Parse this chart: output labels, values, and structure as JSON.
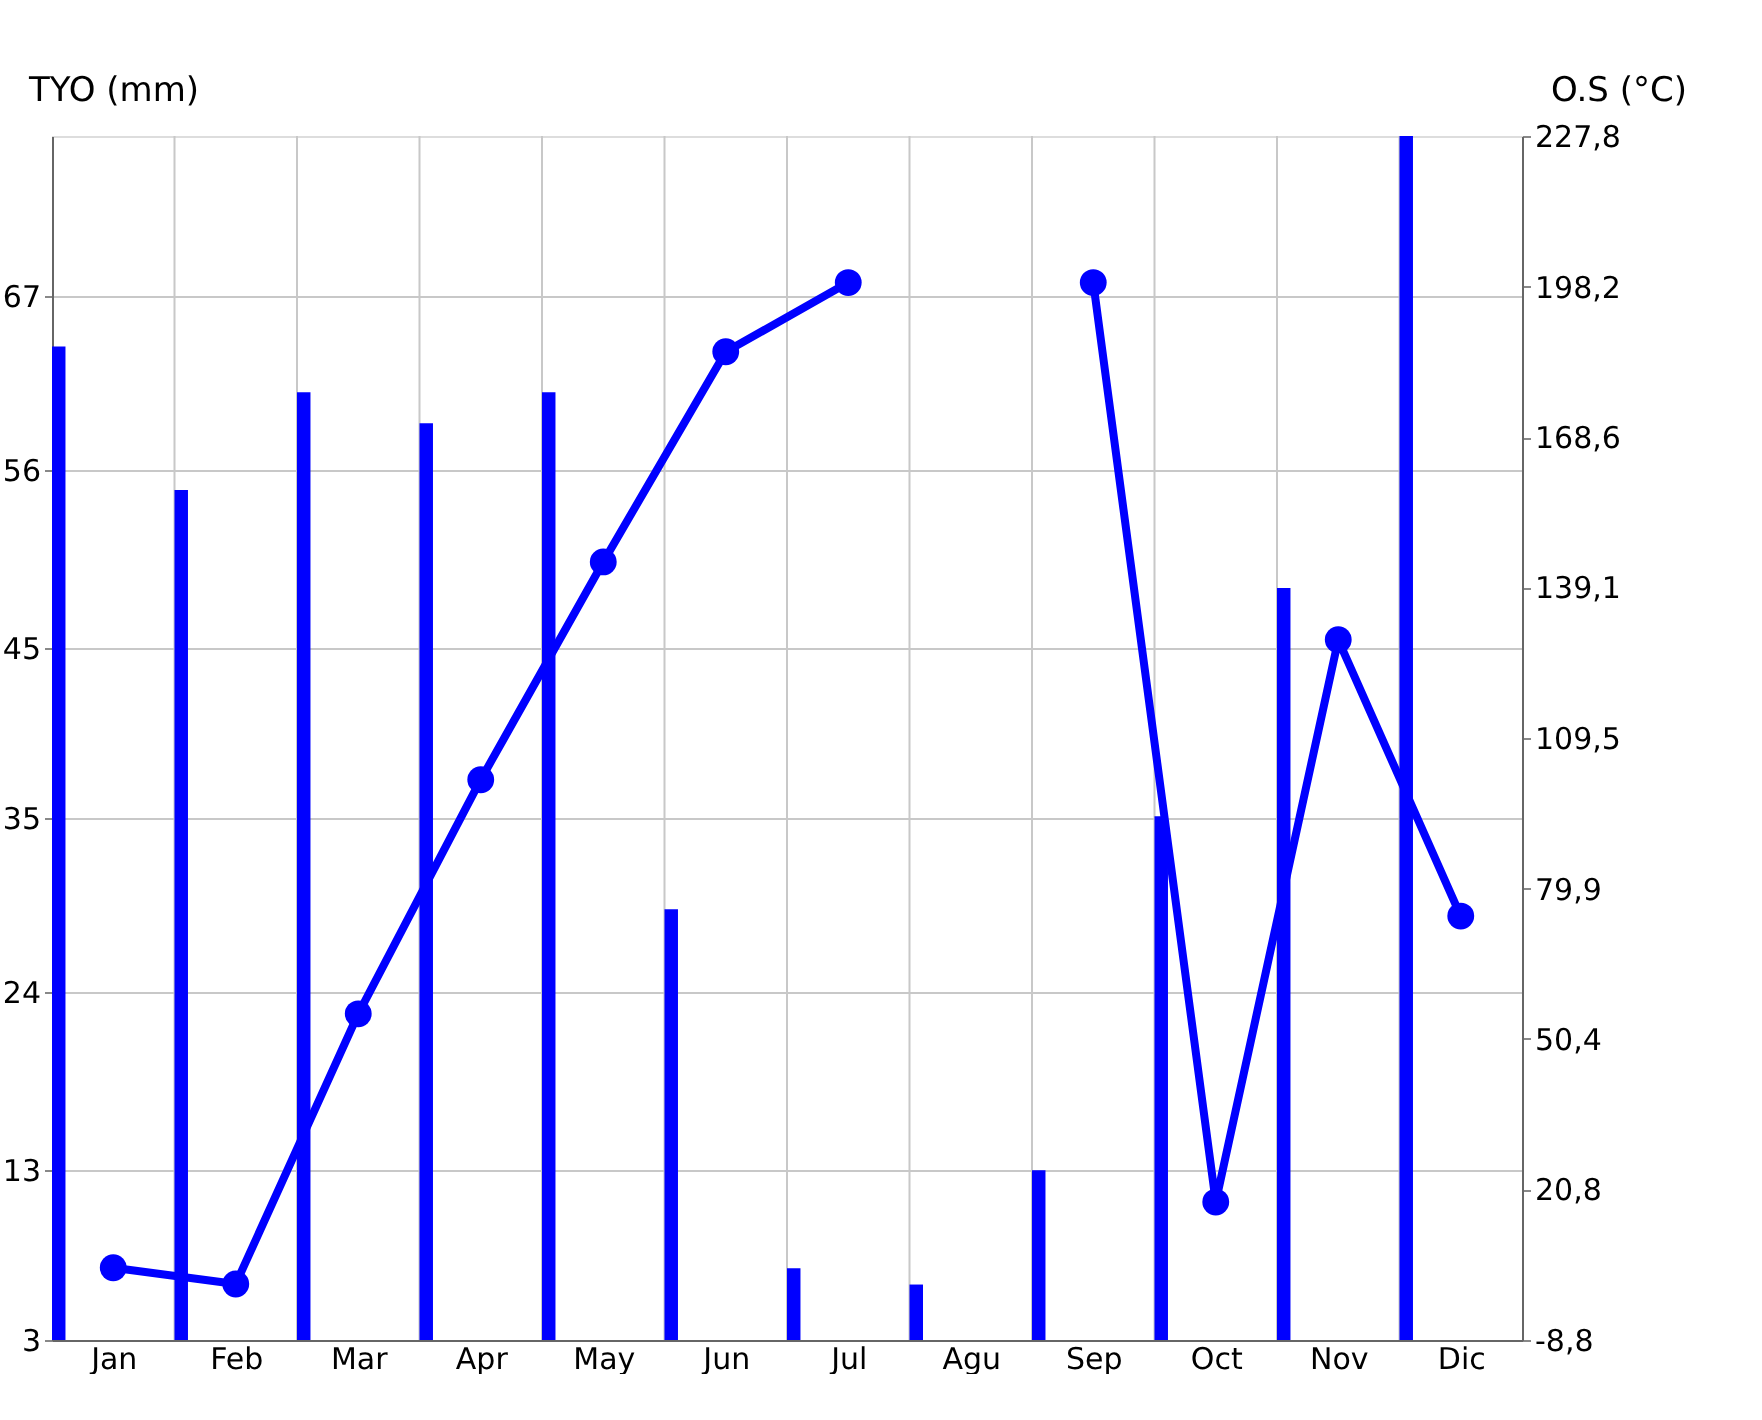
{
  "chart_data": {
    "type": "bar",
    "categories": [
      "Jan",
      "Feb",
      "Mar",
      "Apr",
      "May",
      "Jun",
      "Jul",
      "Agu",
      "Sep",
      "Oct",
      "Nov",
      "Dic"
    ],
    "ylabel": "TYO (mm)",
    "y2label": "O.S (°C)",
    "series": [
      {
        "color": "#0000ff",
        "values": [
          63.9,
          55.1,
          61.1,
          59.2,
          61.1,
          29.4,
          7.4,
          6.4,
          13.4,
          35.1,
          49.1,
          76.8
        ]
      },
      {
        "type": "line",
        "axis": "y2",
        "color": "#0000ff",
        "values": [
          5.4,
          2.2,
          55.3,
          101.3,
          144.1,
          185.4,
          199,
          null,
          199,
          18.3,
          128.8,
          74.5
        ]
      }
    ],
    "ylim": [
      3,
      76.8
    ],
    "yticks": [
      3,
      {
        "value": 13.4,
        "label": "13"
      },
      {
        "value": 24.33,
        "label": "24"
      },
      35,
      {
        "value": 45.4,
        "label": "45"
      },
      {
        "value": 56.33,
        "label": "56"
      },
      67
    ],
    "y2lim": [
      -8.8,
      227.8
    ],
    "y2ticks": [
      {
        "value": -8.8,
        "label": "-8,8"
      },
      {
        "value": 20.8,
        "label": "20,8"
      },
      {
        "value": 50.4,
        "label": "50,4"
      },
      {
        "value": 79.9,
        "label": "79,9"
      },
      {
        "value": 109.5,
        "label": "109,5"
      },
      {
        "value": 139.1,
        "label": "139,1"
      },
      {
        "value": 168.6,
        "label": "168,6"
      },
      {
        "value": 198.2,
        "label": "198,2"
      },
      {
        "value": 227.8,
        "label": "227,8"
      }
    ],
    "grid": true,
    "marker": "circle",
    "line_style": "solid"
  }
}
